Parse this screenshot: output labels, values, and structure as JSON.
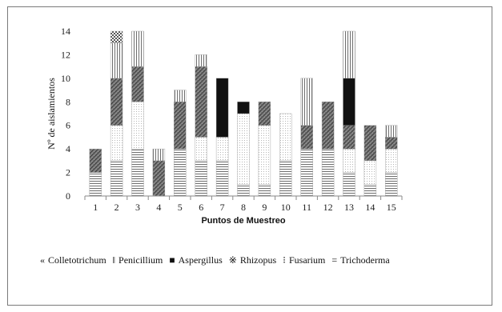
{
  "chart_data": {
    "type": "bar",
    "stacked": true,
    "title": "",
    "xlabel": "Puntos de Muestreo",
    "ylabel": "Nº de aislamientos",
    "categories": [
      "1",
      "2",
      "3",
      "4",
      "5",
      "6",
      "7",
      "8",
      "9",
      "10",
      "11",
      "12",
      "13",
      "14",
      "15"
    ],
    "ylim": [
      0,
      14
    ],
    "yticks": [
      "0",
      "2",
      "4",
      "6",
      "8",
      "10",
      "12",
      "14"
    ],
    "grid": false,
    "legend_position": "bottom",
    "series": [
      {
        "name": "Trichoderma",
        "pattern": "hlines",
        "color": "#6e6e6e",
        "values": [
          2,
          3,
          4,
          0,
          4,
          3,
          3,
          1,
          1,
          3,
          4,
          4,
          2,
          1,
          2
        ]
      },
      {
        "name": "Fusarium",
        "pattern": "dots",
        "color": "#b5b5b5",
        "values": [
          0,
          3,
          4,
          0,
          0,
          2,
          2,
          6,
          5,
          4,
          0,
          0,
          2,
          2,
          2
        ]
      },
      {
        "name": "Rhizopus",
        "pattern": "crosshatch",
        "color": "#555555",
        "values": [
          2,
          4,
          3,
          3,
          4,
          6,
          0,
          0,
          2,
          0,
          2,
          4,
          2,
          3,
          1
        ]
      },
      {
        "name": "Aspergillus",
        "pattern": "solid",
        "color": "#111111",
        "values": [
          0,
          0,
          0,
          0,
          0,
          0,
          5,
          1,
          0,
          0,
          0,
          0,
          4,
          0,
          0
        ]
      },
      {
        "name": "Penicillium",
        "pattern": "vlines",
        "color": "#6e6e6e",
        "values": [
          0,
          3,
          3,
          1,
          1,
          1,
          0,
          0,
          0,
          0,
          4,
          0,
          4,
          0,
          1
        ]
      },
      {
        "name": "Colletotrichum",
        "pattern": "checker",
        "color": "#555555",
        "values": [
          0,
          1,
          0,
          0,
          0,
          0,
          0,
          0,
          0,
          0,
          0,
          0,
          0,
          0,
          0
        ]
      }
    ],
    "legend_order": [
      "Colletotrichum",
      "Penicillium",
      "Aspergillus",
      "Rhizopus",
      "Fusarium",
      "Trichoderma"
    ],
    "legend_symbols": {
      "Colletotrichum": "«",
      "Penicillium": "‖",
      "Aspergillus": "■",
      "Rhizopus": "※",
      "Fusarium": "⁝",
      "Trichoderma": "="
    }
  }
}
